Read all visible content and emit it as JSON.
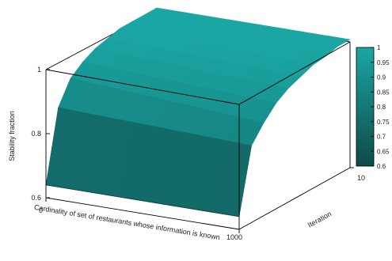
{
  "chart_data": {
    "type": "surface3d",
    "xlabel": "Cardinality of set of restaurants whose information is known",
    "ylabel": "Iteration",
    "zlabel": "Stability fraction",
    "x_ticks": [
      "0",
      "1000"
    ],
    "y_ticks": [
      "10"
    ],
    "z_ticks": [
      "0.6",
      "0.8",
      "1"
    ],
    "zlim": [
      0.6,
      1.0
    ],
    "colorbar": {
      "ticks": [
        "1",
        "0.95",
        "0.9",
        "0.85",
        "0.8",
        "0.75",
        "0.7",
        "0.65",
        "0.6"
      ],
      "low_color": "#0f4a47",
      "high_color": "#1aa6a4"
    },
    "iteration": [
      1,
      2,
      3,
      4,
      5,
      6,
      7,
      8,
      9,
      10
    ],
    "surface": {
      "front_row_at_iteration_1": {
        "cardinality": [
          0,
          1000
        ],
        "stability": [
          0.64,
          0.64
        ]
      },
      "x0_edge_vs_iteration": [
        0.64,
        0.86,
        0.93,
        0.96,
        0.98,
        0.99,
        1.0,
        1.0,
        1.0,
        1.0
      ],
      "x1000_edge_vs_iteration": [
        0.64,
        0.84,
        0.89,
        0.93,
        0.955,
        0.97,
        0.985,
        0.99,
        1.0,
        1.0
      ]
    }
  }
}
